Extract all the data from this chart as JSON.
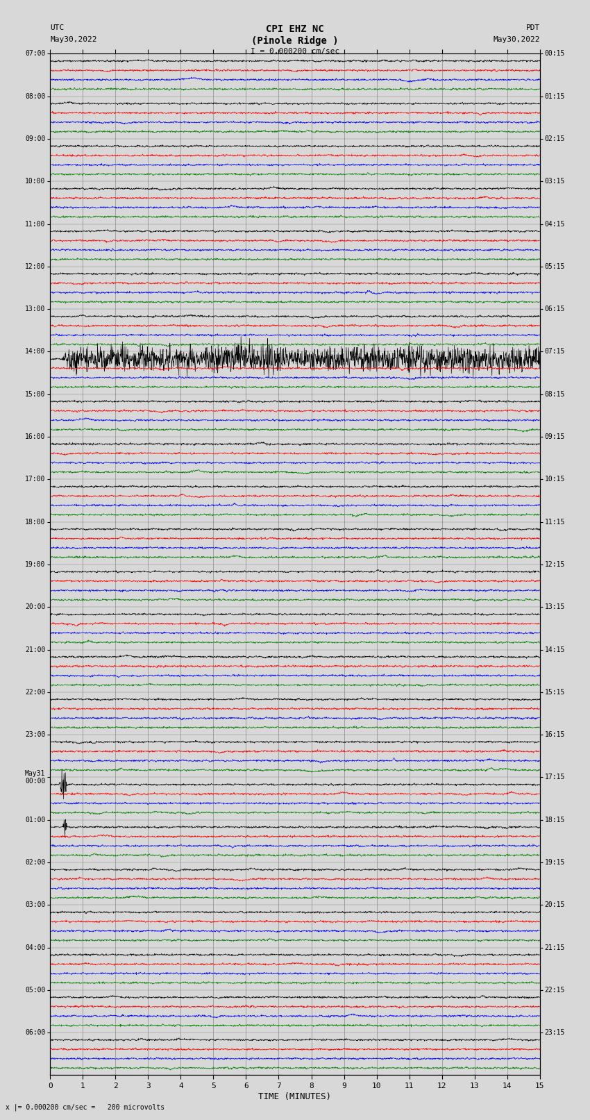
{
  "title_line1": "CPI EHZ NC",
  "title_line2": "(Pinole Ridge )",
  "scale_text": "I = 0.000200 cm/sec",
  "label_utc": "UTC",
  "label_pdt": "PDT",
  "date_left": "May30,2022",
  "date_right": "May30,2022",
  "xlabel": "TIME (MINUTES)",
  "bottom_note": "x |= 0.000200 cm/sec =   200 microvolts",
  "utc_times": [
    "07:00",
    "08:00",
    "09:00",
    "10:00",
    "11:00",
    "12:00",
    "13:00",
    "14:00",
    "15:00",
    "16:00",
    "17:00",
    "18:00",
    "19:00",
    "20:00",
    "21:00",
    "22:00",
    "23:00",
    "May31\n00:00",
    "01:00",
    "02:00",
    "03:00",
    "04:00",
    "05:00",
    "06:00"
  ],
  "pdt_times": [
    "00:15",
    "01:15",
    "02:15",
    "03:15",
    "04:15",
    "05:15",
    "06:15",
    "07:15",
    "08:15",
    "09:15",
    "10:15",
    "11:15",
    "12:15",
    "13:15",
    "14:15",
    "15:15",
    "16:15",
    "17:15",
    "18:15",
    "19:15",
    "20:15",
    "21:15",
    "22:15",
    "23:15"
  ],
  "n_rows": 24,
  "traces_per_row": 4,
  "colors": [
    "black",
    "red",
    "blue",
    "green"
  ],
  "bg_color": "#d8d8d8",
  "plot_bg": "#d8d8d8",
  "x_min": 0,
  "x_max": 15,
  "figsize": [
    8.5,
    16.13
  ],
  "dpi": 100,
  "seed": 42
}
